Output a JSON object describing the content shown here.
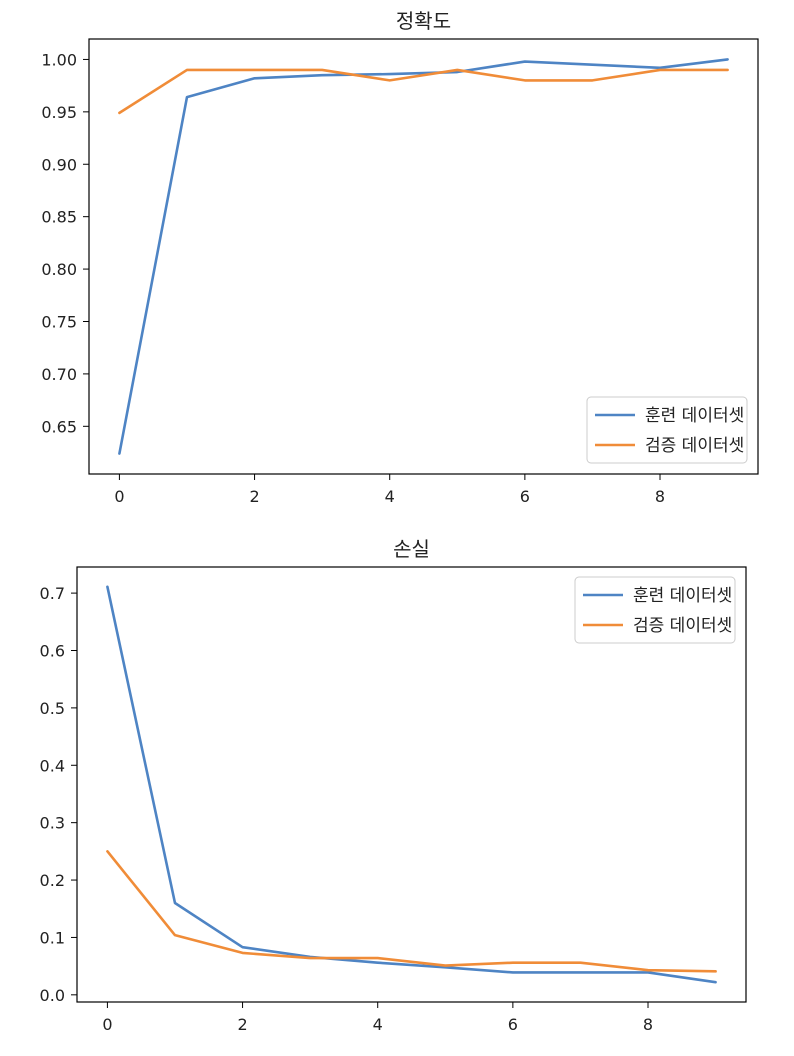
{
  "chart_data": [
    {
      "type": "line",
      "title": "정확도",
      "xlabel": "",
      "ylabel": "",
      "x": [
        0,
        1,
        2,
        3,
        4,
        5,
        6,
        7,
        8,
        9
      ],
      "series": [
        {
          "name": "훈련 데이터셋",
          "color": "#4e84c4",
          "values": [
            0.624,
            0.964,
            0.982,
            0.985,
            0.986,
            0.988,
            0.998,
            0.995,
            0.992,
            1.0
          ]
        },
        {
          "name": "검증 데이터셋",
          "color": "#f08c38",
          "values": [
            0.949,
            0.99,
            0.99,
            0.99,
            0.98,
            0.99,
            0.98,
            0.98,
            0.99,
            0.99
          ]
        }
      ],
      "xlim": [
        -0.45,
        9.45
      ],
      "ylim": [
        0.6045,
        1.0195
      ],
      "xticks": [
        0,
        2,
        4,
        6,
        8
      ],
      "xtick_labels": [
        "0",
        "2",
        "4",
        "6",
        "8"
      ],
      "yticks": [
        0.65,
        0.7,
        0.75,
        0.8,
        0.85,
        0.9,
        0.95,
        1.0
      ],
      "ytick_labels": [
        "0.65",
        "0.70",
        "0.75",
        "0.80",
        "0.85",
        "0.90",
        "0.95",
        "1.00"
      ],
      "legend_position": "lower-right",
      "grid": false
    },
    {
      "type": "line",
      "title": "손실",
      "xlabel": "",
      "ylabel": "",
      "x": [
        0,
        1,
        2,
        3,
        4,
        5,
        6,
        7,
        8,
        9
      ],
      "series": [
        {
          "name": "훈련 데이터셋",
          "color": "#4e84c4",
          "values": [
            0.711,
            0.16,
            0.083,
            0.066,
            0.056,
            0.048,
            0.039,
            0.039,
            0.039,
            0.022
          ]
        },
        {
          "name": "검증 데이터셋",
          "color": "#f08c38",
          "values": [
            0.25,
            0.104,
            0.073,
            0.064,
            0.064,
            0.051,
            0.056,
            0.056,
            0.043,
            0.041
          ]
        }
      ],
      "xlim": [
        -0.45,
        9.45
      ],
      "ylim": [
        -0.0125,
        0.7455
      ],
      "xticks": [
        0,
        2,
        4,
        6,
        8
      ],
      "xtick_labels": [
        "0",
        "2",
        "4",
        "6",
        "8"
      ],
      "yticks": [
        0.0,
        0.1,
        0.2,
        0.3,
        0.4,
        0.5,
        0.6,
        0.7
      ],
      "ytick_labels": [
        "0.0",
        "0.1",
        "0.2",
        "0.3",
        "0.4",
        "0.5",
        "0.6",
        "0.7"
      ],
      "legend_position": "upper-right",
      "grid": false
    }
  ]
}
